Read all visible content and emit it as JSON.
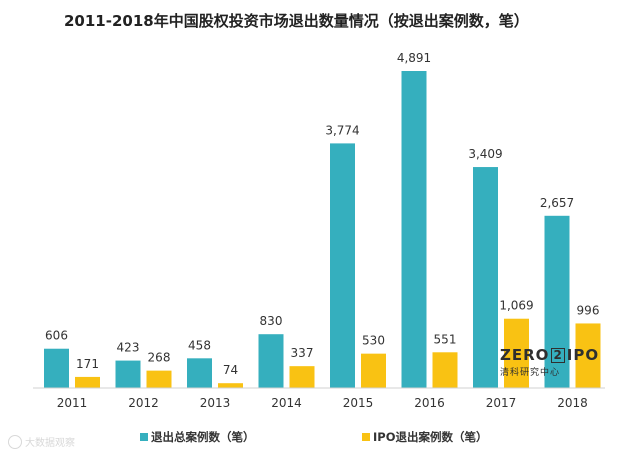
{
  "chart_data": {
    "type": "bar",
    "title": "2011-2018年中国股权投资市场退出数量情况（按退出案例数，笔）",
    "categories": [
      "2011",
      "2012",
      "2013",
      "2014",
      "2015",
      "2016",
      "2017",
      "2018"
    ],
    "series": [
      {
        "name": "退出总案例数（笔）",
        "values": [
          606,
          423,
          458,
          830,
          3774,
          4891,
          3409,
          2657
        ],
        "labels": [
          "606",
          "423",
          "458",
          "830",
          "3,774",
          "4,891",
          "3,409",
          "2,657"
        ],
        "color": "#35AFBE"
      },
      {
        "name": "IPO退出案例数（笔）",
        "values": [
          171,
          268,
          74,
          337,
          530,
          551,
          1069,
          996
        ],
        "labels": [
          "171",
          "268",
          "74",
          "337",
          "530",
          "551",
          "1,069",
          "996"
        ],
        "color": "#F9C213"
      }
    ],
    "ylim": [
      0,
      4891
    ],
    "grid": false,
    "legend": "bottom",
    "xlabel": "",
    "ylabel": ""
  },
  "watermark": {
    "text": "大数据观察"
  },
  "logo": {
    "main_left": "ZERO",
    "main_box": "2",
    "main_right": "IPO",
    "sub": "清科研究中心"
  }
}
